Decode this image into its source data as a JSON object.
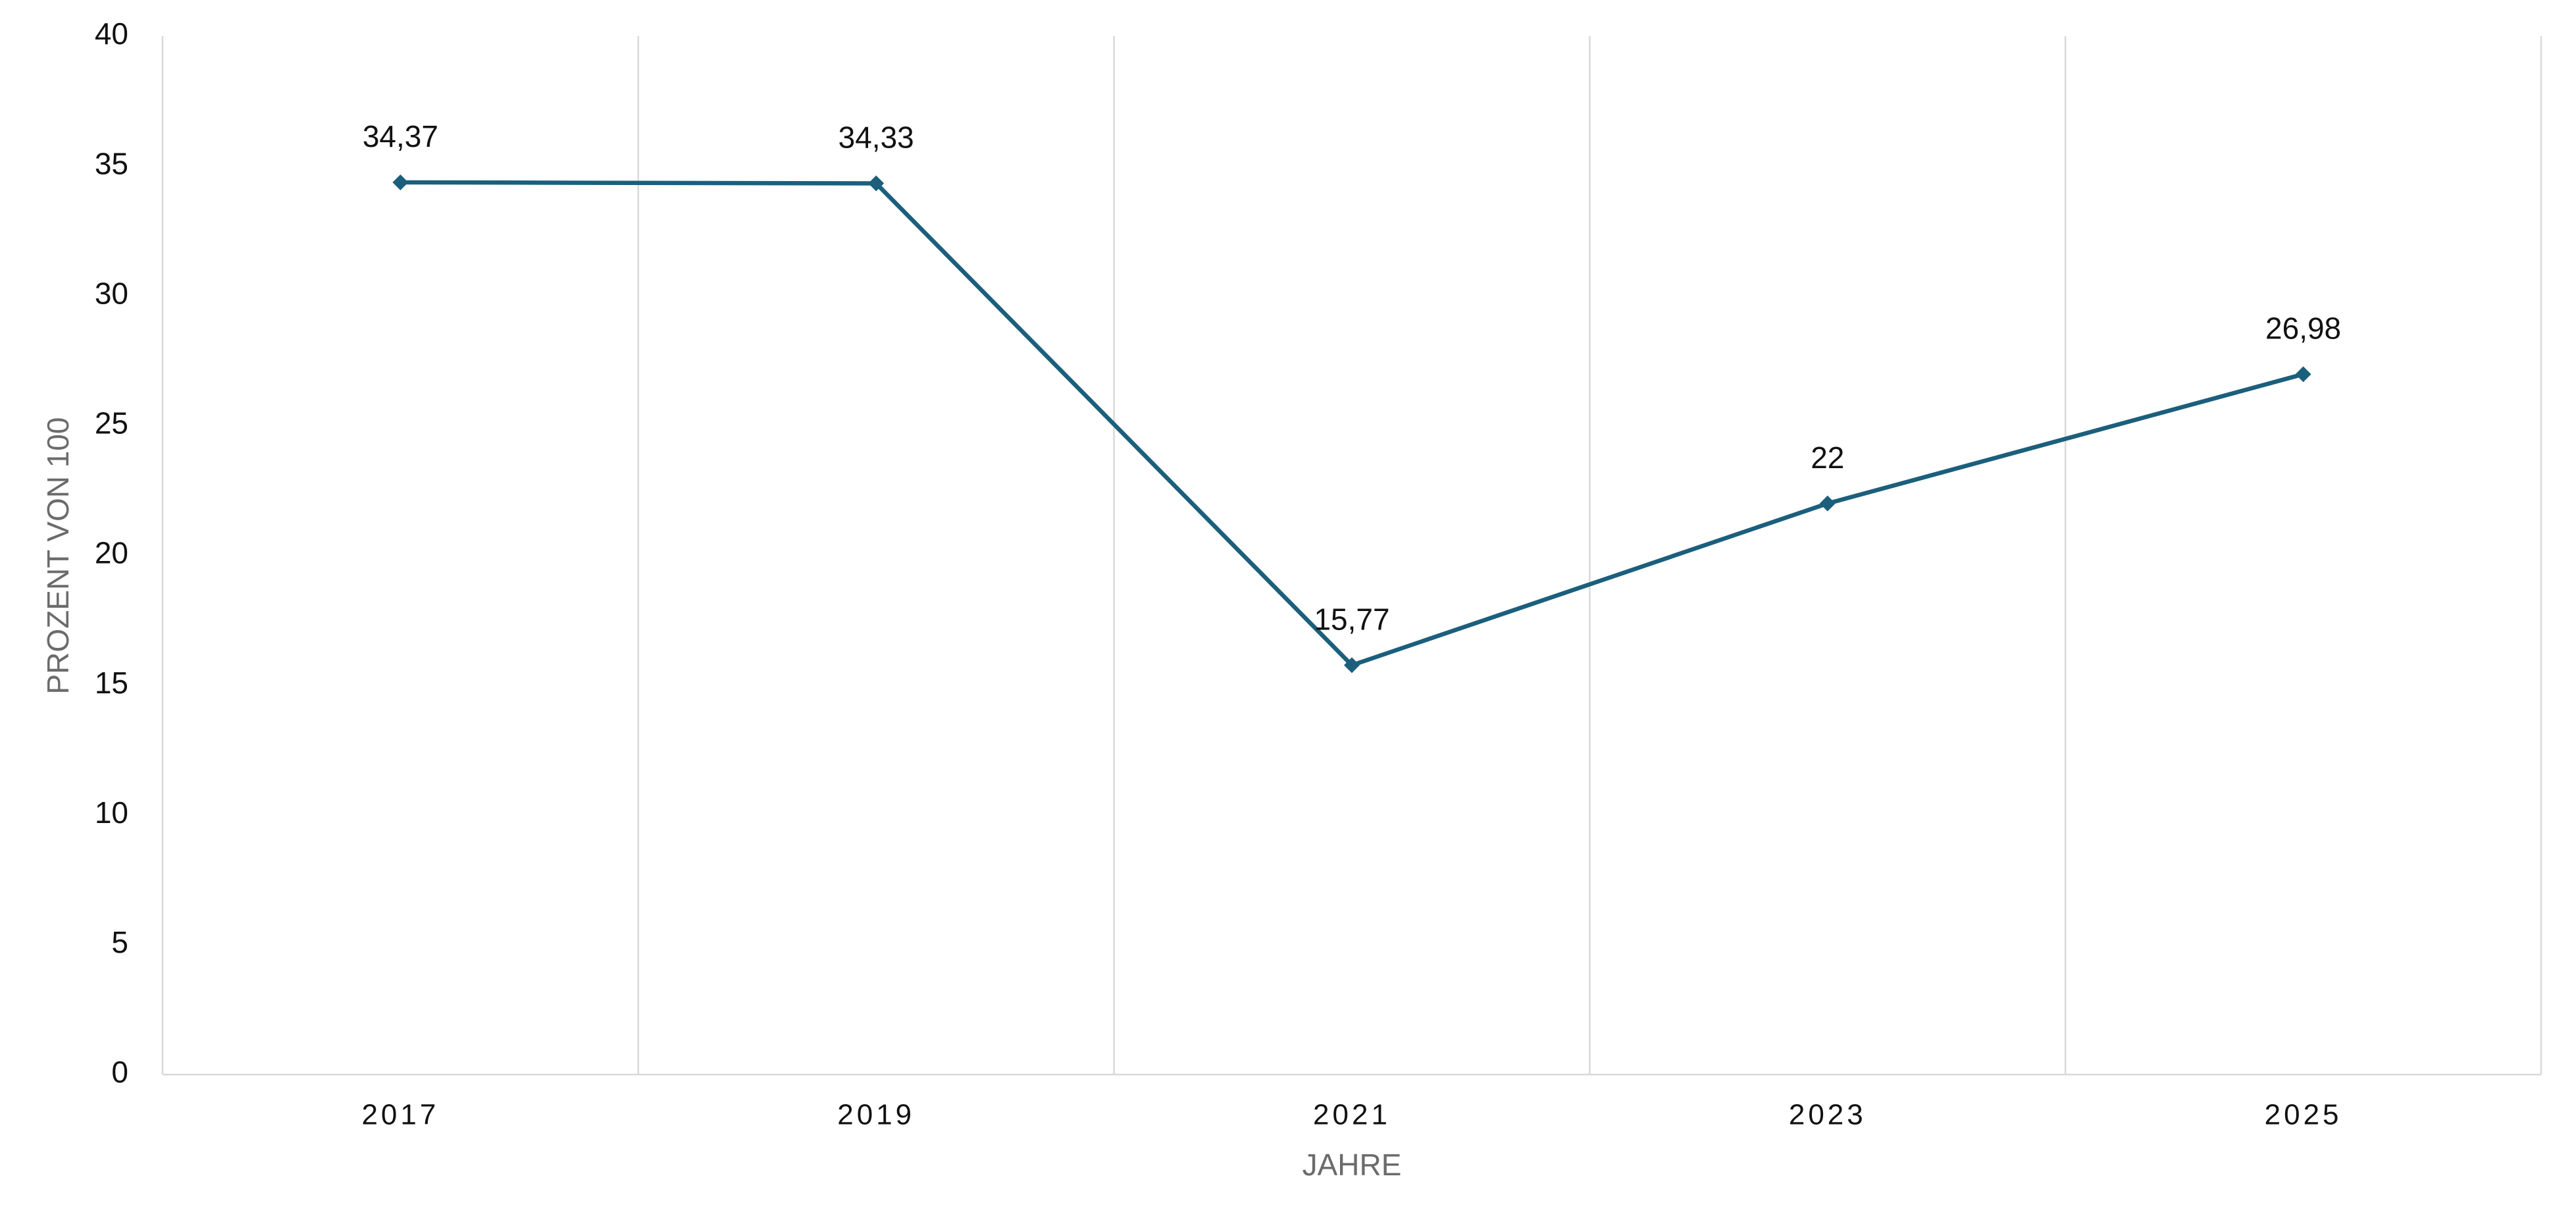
{
  "chart_data": {
    "type": "line",
    "x_label": "JAHRE",
    "y_label": "PROZENT VON 100",
    "categories": [
      "2017",
      "2019",
      "2021",
      "2023",
      "2025"
    ],
    "series": [
      {
        "name": "PROZENT VON 100",
        "color": "#1b5f7c",
        "values": [
          34.37,
          34.33,
          15.77,
          22,
          26.98
        ],
        "value_labels": [
          "34,37",
          "34,33",
          "15,77",
          "22",
          "26,98"
        ]
      }
    ],
    "ylim": [
      0,
      40
    ],
    "yticks": [
      0,
      5,
      10,
      15,
      20,
      25,
      30,
      35,
      40
    ],
    "grid": "x",
    "marker": "diamond"
  }
}
